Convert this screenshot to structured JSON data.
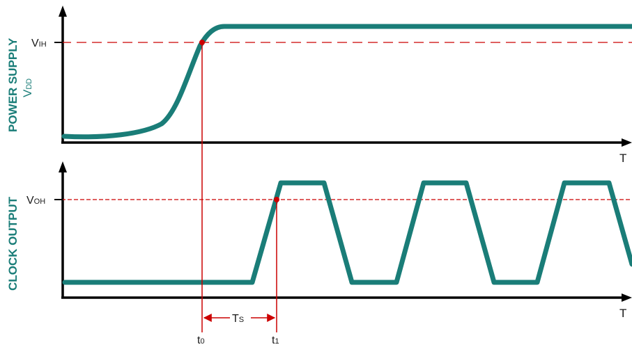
{
  "colors": {
    "waveform": "#1a7d78",
    "axis": "#000000",
    "marker": "#cc0000",
    "label": "#1a7d78"
  },
  "power_panel": {
    "ylabel_line1": "POWER SUPPLY",
    "ylabel_v": "V",
    "ylabel_sub": "DD",
    "threshold_main": "V",
    "threshold_sub": "IH",
    "xlabel": "T"
  },
  "clock_panel": {
    "ylabel": "CLOCK OUTPUT",
    "threshold_main": "V",
    "threshold_sub": "OH",
    "xlabel": "T"
  },
  "timing": {
    "t0_main": "t",
    "t0_sub": "0",
    "t1_main": "t",
    "t1_sub": "1",
    "ts_main": "T",
    "ts_sub": "S"
  }
}
